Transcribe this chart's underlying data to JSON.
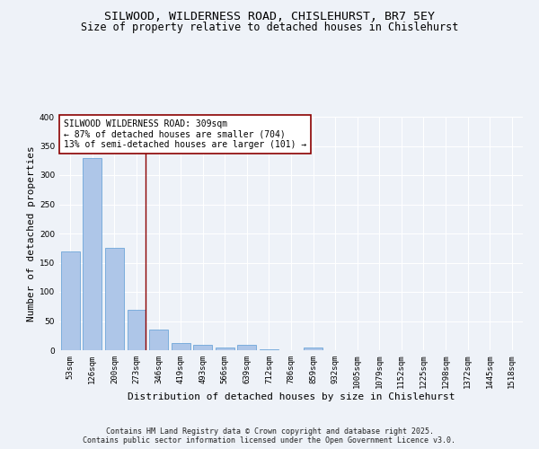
{
  "title_line1": "SILWOOD, WILDERNESS ROAD, CHISLEHURST, BR7 5EY",
  "title_line2": "Size of property relative to detached houses in Chislehurst",
  "xlabel": "Distribution of detached houses by size in Chislehurst",
  "ylabel": "Number of detached properties",
  "bar_color": "#aec6e8",
  "bar_edge_color": "#5b9bd5",
  "vline_color": "#8b0000",
  "vline_x_index": 3.42,
  "categories": [
    "53sqm",
    "126sqm",
    "200sqm",
    "273sqm",
    "346sqm",
    "419sqm",
    "493sqm",
    "566sqm",
    "639sqm",
    "712sqm",
    "786sqm",
    "859sqm",
    "932sqm",
    "1005sqm",
    "1079sqm",
    "1152sqm",
    "1225sqm",
    "1298sqm",
    "1372sqm",
    "1445sqm",
    "1518sqm"
  ],
  "values": [
    170,
    330,
    175,
    70,
    35,
    12,
    9,
    5,
    10,
    2,
    0,
    4,
    0,
    0,
    0,
    0,
    0,
    0,
    0,
    0,
    0
  ],
  "annotation_text": "SILWOOD WILDERNESS ROAD: 309sqm\n← 87% of detached houses are smaller (704)\n13% of semi-detached houses are larger (101) →",
  "annotation_box_color": "white",
  "annotation_box_edgecolor": "#8b0000",
  "footnote": "Contains HM Land Registry data © Crown copyright and database right 2025.\nContains public sector information licensed under the Open Government Licence v3.0.",
  "background_color": "#eef2f8",
  "grid_color": "#ffffff",
  "ylim": [
    0,
    400
  ],
  "yticks": [
    0,
    50,
    100,
    150,
    200,
    250,
    300,
    350,
    400
  ],
  "title_fontsize": 9.5,
  "subtitle_fontsize": 8.5,
  "axis_label_fontsize": 8,
  "tick_fontsize": 6.5,
  "annotation_fontsize": 7,
  "footnote_fontsize": 6
}
